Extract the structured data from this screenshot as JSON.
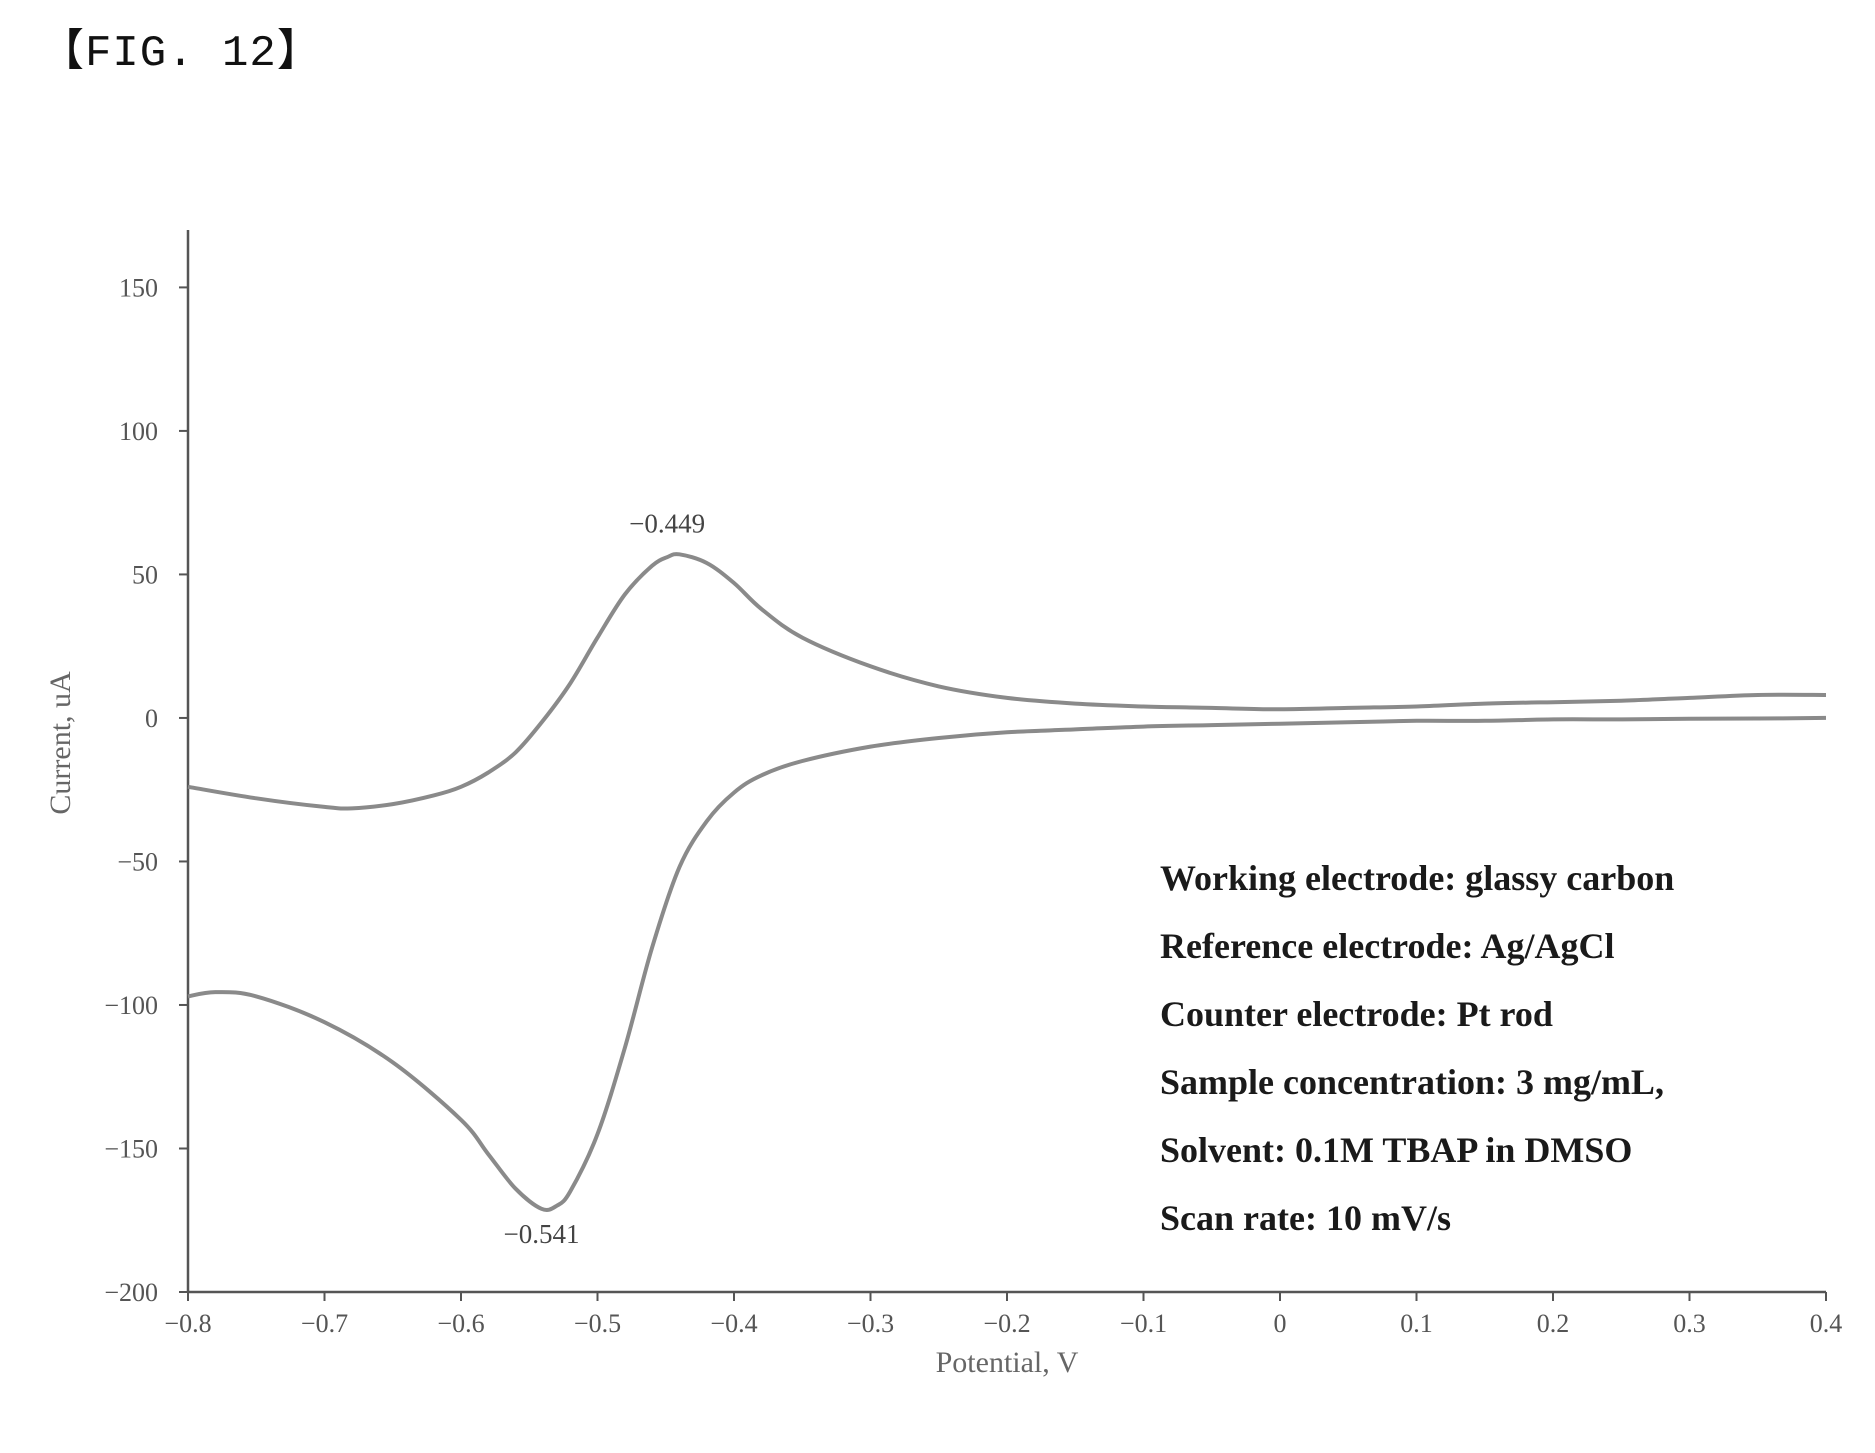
{
  "figure_label": "【FIG. 12】",
  "chart_data": {
    "type": "line",
    "xlabel": "Potential, V",
    "ylabel": "Current, uA",
    "xlim": [
      -0.8,
      0.4
    ],
    "ylim": [
      -200,
      170
    ],
    "x_ticks": [
      -0.8,
      -0.7,
      -0.6,
      -0.5,
      -0.4,
      -0.3,
      -0.2,
      -0.1,
      0,
      0.1,
      0.2,
      0.3,
      0.4
    ],
    "x_tick_labels": [
      "−0.8",
      "−0.7",
      "−0.6",
      "−0.5",
      "−0.4",
      "−0.3",
      "−0.2",
      "−0.1",
      "0",
      "0.1",
      "0.2",
      "0.3",
      "0.4"
    ],
    "y_ticks": [
      -200,
      -150,
      -100,
      -50,
      0,
      50,
      100,
      150
    ],
    "y_tick_labels": [
      "−200",
      "−150",
      "−100",
      "−50",
      "0",
      "50",
      "100",
      "150"
    ],
    "grid": false,
    "line_color": "#8a8a8a",
    "series": [
      {
        "x": [
          -0.8,
          -0.75,
          -0.7,
          -0.68,
          -0.65,
          -0.62,
          -0.6,
          -0.58,
          -0.56,
          -0.54,
          -0.52,
          -0.5,
          -0.48,
          -0.46,
          -0.449,
          -0.44,
          -0.42,
          -0.4,
          -0.38,
          -0.35,
          -0.3,
          -0.25,
          -0.2,
          -0.15,
          -0.1,
          -0.05,
          0,
          0.05,
          0.1,
          0.15,
          0.2,
          0.25,
          0.3,
          0.35,
          0.4
        ],
        "y": [
          -24,
          -28,
          -31,
          -31.5,
          -30,
          -27,
          -24,
          -19,
          -12,
          -1,
          12,
          28,
          43,
          53,
          56,
          57,
          54,
          47,
          38,
          28,
          18,
          11,
          7,
          5,
          4,
          3.5,
          3,
          3.5,
          4,
          5,
          5.5,
          6,
          7,
          8,
          8
        ]
      },
      {
        "x": [
          -0.8,
          -0.78,
          -0.75,
          -0.7,
          -0.65,
          -0.6,
          -0.58,
          -0.56,
          -0.541,
          -0.53,
          -0.52,
          -0.5,
          -0.48,
          -0.46,
          -0.44,
          -0.42,
          -0.4,
          -0.38,
          -0.35,
          -0.3,
          -0.25,
          -0.2,
          -0.15,
          -0.1,
          -0.05,
          0,
          0.05,
          0.1,
          0.15,
          0.2,
          0.25,
          0.3,
          0.35,
          0.4
        ],
        "y": [
          -97,
          -95.5,
          -97,
          -106,
          -120,
          -140,
          -152,
          -164,
          -171,
          -170,
          -165,
          -145,
          -115,
          -80,
          -52,
          -36,
          -26,
          -20,
          -15,
          -10,
          -7,
          -5,
          -4,
          -3,
          -2.5,
          -2,
          -1.5,
          -1,
          -1,
          -0.5,
          -0.5,
          -0.3,
          -0.2,
          0
        ]
      }
    ],
    "peak_labels": [
      {
        "text": "−0.449",
        "x": -0.449,
        "y": 57,
        "position": "above"
      },
      {
        "text": "−0.541",
        "x": -0.541,
        "y": -171,
        "position": "below"
      }
    ],
    "annotations": [
      "Working electrode: glassy carbon",
      "Reference electrode: Ag/AgCl",
      "Counter electrode: Pt rod",
      "Sample concentration: 3 mg/mL,",
      "Solvent: 0.1M TBAP in DMSO",
      "Scan rate: 10 mV/s"
    ]
  }
}
